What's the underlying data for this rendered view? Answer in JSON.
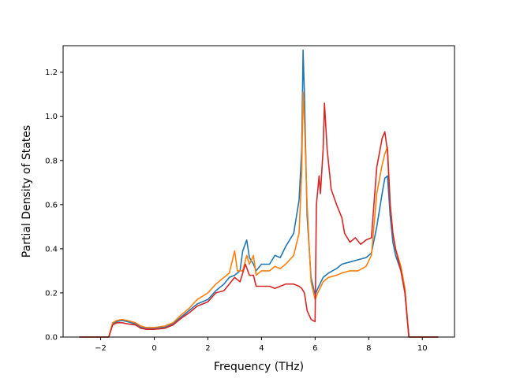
{
  "chart_data": {
    "type": "line",
    "title": "",
    "xlabel": "Frequency (THz)",
    "ylabel": "Partial Density of States",
    "xlim": [
      -3.4,
      11.2
    ],
    "ylim": [
      0.0,
      1.32
    ],
    "xticks": [
      -2,
      0,
      2,
      4,
      6,
      8,
      10
    ],
    "yticks": [
      0.0,
      0.2,
      0.4,
      0.6,
      0.8,
      1.0,
      1.2
    ],
    "xtick_labels": [
      "−2",
      "0",
      "2",
      "4",
      "6",
      "8",
      "10"
    ],
    "ytick_labels": [
      "0.0",
      "0.2",
      "0.4",
      "0.6",
      "0.8",
      "1.0",
      "1.2"
    ],
    "grid": false,
    "series": [
      {
        "color": "#1f77b4",
        "points": [
          [
            -2.8,
            0
          ],
          [
            -1.7,
            0
          ],
          [
            -1.55,
            0.06
          ],
          [
            -1.4,
            0.07
          ],
          [
            -1.2,
            0.075
          ],
          [
            -1.0,
            0.07
          ],
          [
            -0.7,
            0.06
          ],
          [
            -0.5,
            0.045
          ],
          [
            -0.3,
            0.04
          ],
          [
            0,
            0.04
          ],
          [
            0.4,
            0.045
          ],
          [
            0.7,
            0.06
          ],
          [
            1.0,
            0.09
          ],
          [
            1.3,
            0.12
          ],
          [
            1.6,
            0.15
          ],
          [
            2.0,
            0.17
          ],
          [
            2.3,
            0.21
          ],
          [
            2.6,
            0.24
          ],
          [
            2.8,
            0.27
          ],
          [
            3.0,
            0.28
          ],
          [
            3.2,
            0.3
          ],
          [
            3.3,
            0.39
          ],
          [
            3.45,
            0.44
          ],
          [
            3.55,
            0.36
          ],
          [
            3.7,
            0.33
          ],
          [
            3.8,
            0.3
          ],
          [
            4.0,
            0.33
          ],
          [
            4.3,
            0.33
          ],
          [
            4.5,
            0.37
          ],
          [
            4.7,
            0.36
          ],
          [
            4.9,
            0.41
          ],
          [
            5.2,
            0.47
          ],
          [
            5.4,
            0.62
          ],
          [
            5.5,
            0.85
          ],
          [
            5.55,
            1.3
          ],
          [
            5.6,
            1.1
          ],
          [
            5.7,
            0.55
          ],
          [
            5.85,
            0.27
          ],
          [
            6.0,
            0.19
          ],
          [
            6.1,
            0.22
          ],
          [
            6.3,
            0.27
          ],
          [
            6.5,
            0.29
          ],
          [
            6.8,
            0.31
          ],
          [
            7.0,
            0.33
          ],
          [
            7.3,
            0.34
          ],
          [
            7.6,
            0.35
          ],
          [
            7.9,
            0.36
          ],
          [
            8.1,
            0.38
          ],
          [
            8.3,
            0.5
          ],
          [
            8.5,
            0.65
          ],
          [
            8.6,
            0.72
          ],
          [
            8.7,
            0.73
          ],
          [
            8.8,
            0.55
          ],
          [
            8.9,
            0.43
          ],
          [
            9.0,
            0.37
          ],
          [
            9.2,
            0.3
          ],
          [
            9.35,
            0.2
          ],
          [
            9.5,
            0
          ],
          [
            10.6,
            0
          ]
        ]
      },
      {
        "color": "#ff7f0e",
        "points": [
          [
            -2.8,
            0
          ],
          [
            -1.7,
            0
          ],
          [
            -1.55,
            0.065
          ],
          [
            -1.4,
            0.075
          ],
          [
            -1.2,
            0.08
          ],
          [
            -1.0,
            0.075
          ],
          [
            -0.7,
            0.065
          ],
          [
            -0.5,
            0.05
          ],
          [
            -0.3,
            0.043
          ],
          [
            0,
            0.043
          ],
          [
            0.4,
            0.05
          ],
          [
            0.7,
            0.065
          ],
          [
            1.0,
            0.1
          ],
          [
            1.3,
            0.13
          ],
          [
            1.6,
            0.17
          ],
          [
            2.0,
            0.2
          ],
          [
            2.3,
            0.24
          ],
          [
            2.6,
            0.27
          ],
          [
            2.8,
            0.29
          ],
          [
            3.0,
            0.39
          ],
          [
            3.1,
            0.3
          ],
          [
            3.3,
            0.3
          ],
          [
            3.45,
            0.37
          ],
          [
            3.55,
            0.33
          ],
          [
            3.7,
            0.37
          ],
          [
            3.8,
            0.28
          ],
          [
            4.0,
            0.3
          ],
          [
            4.3,
            0.3
          ],
          [
            4.5,
            0.32
          ],
          [
            4.7,
            0.31
          ],
          [
            4.9,
            0.33
          ],
          [
            5.2,
            0.37
          ],
          [
            5.4,
            0.47
          ],
          [
            5.5,
            0.75
          ],
          [
            5.55,
            1.11
          ],
          [
            5.6,
            0.98
          ],
          [
            5.7,
            0.6
          ],
          [
            5.85,
            0.25
          ],
          [
            6.0,
            0.17
          ],
          [
            6.1,
            0.2
          ],
          [
            6.3,
            0.25
          ],
          [
            6.5,
            0.27
          ],
          [
            6.8,
            0.28
          ],
          [
            7.0,
            0.29
          ],
          [
            7.3,
            0.3
          ],
          [
            7.6,
            0.3
          ],
          [
            7.9,
            0.32
          ],
          [
            8.1,
            0.37
          ],
          [
            8.3,
            0.65
          ],
          [
            8.5,
            0.78
          ],
          [
            8.6,
            0.83
          ],
          [
            8.7,
            0.86
          ],
          [
            8.8,
            0.6
          ],
          [
            8.9,
            0.47
          ],
          [
            9.0,
            0.4
          ],
          [
            9.2,
            0.32
          ],
          [
            9.35,
            0.22
          ],
          [
            9.5,
            0
          ],
          [
            10.6,
            0
          ]
        ]
      },
      {
        "color": "#d62728",
        "points": [
          [
            -2.8,
            0
          ],
          [
            -1.7,
            0
          ],
          [
            -1.55,
            0.055
          ],
          [
            -1.4,
            0.065
          ],
          [
            -1.2,
            0.065
          ],
          [
            -1.0,
            0.06
          ],
          [
            -0.7,
            0.055
          ],
          [
            -0.5,
            0.04
          ],
          [
            -0.3,
            0.035
          ],
          [
            0,
            0.035
          ],
          [
            0.4,
            0.04
          ],
          [
            0.7,
            0.055
          ],
          [
            1.0,
            0.085
          ],
          [
            1.3,
            0.11
          ],
          [
            1.6,
            0.14
          ],
          [
            2.0,
            0.16
          ],
          [
            2.3,
            0.2
          ],
          [
            2.6,
            0.21
          ],
          [
            2.8,
            0.24
          ],
          [
            3.0,
            0.27
          ],
          [
            3.2,
            0.25
          ],
          [
            3.4,
            0.33
          ],
          [
            3.55,
            0.28
          ],
          [
            3.7,
            0.28
          ],
          [
            3.8,
            0.23
          ],
          [
            4.0,
            0.23
          ],
          [
            4.3,
            0.23
          ],
          [
            4.5,
            0.22
          ],
          [
            4.7,
            0.23
          ],
          [
            4.9,
            0.24
          ],
          [
            5.2,
            0.24
          ],
          [
            5.4,
            0.23
          ],
          [
            5.5,
            0.22
          ],
          [
            5.6,
            0.2
          ],
          [
            5.7,
            0.12
          ],
          [
            5.85,
            0.08
          ],
          [
            6.0,
            0.07
          ],
          [
            6.05,
            0.6
          ],
          [
            6.15,
            0.73
          ],
          [
            6.2,
            0.65
          ],
          [
            6.3,
            0.85
          ],
          [
            6.35,
            1.06
          ],
          [
            6.45,
            0.85
          ],
          [
            6.6,
            0.67
          ],
          [
            6.8,
            0.6
          ],
          [
            7.0,
            0.54
          ],
          [
            7.1,
            0.47
          ],
          [
            7.3,
            0.43
          ],
          [
            7.5,
            0.45
          ],
          [
            7.7,
            0.42
          ],
          [
            7.9,
            0.44
          ],
          [
            8.1,
            0.45
          ],
          [
            8.3,
            0.77
          ],
          [
            8.5,
            0.9
          ],
          [
            8.6,
            0.93
          ],
          [
            8.7,
            0.84
          ],
          [
            8.8,
            0.6
          ],
          [
            8.9,
            0.47
          ],
          [
            9.0,
            0.4
          ],
          [
            9.2,
            0.3
          ],
          [
            9.35,
            0.2
          ],
          [
            9.5,
            0
          ],
          [
            10.6,
            0
          ]
        ]
      }
    ]
  }
}
